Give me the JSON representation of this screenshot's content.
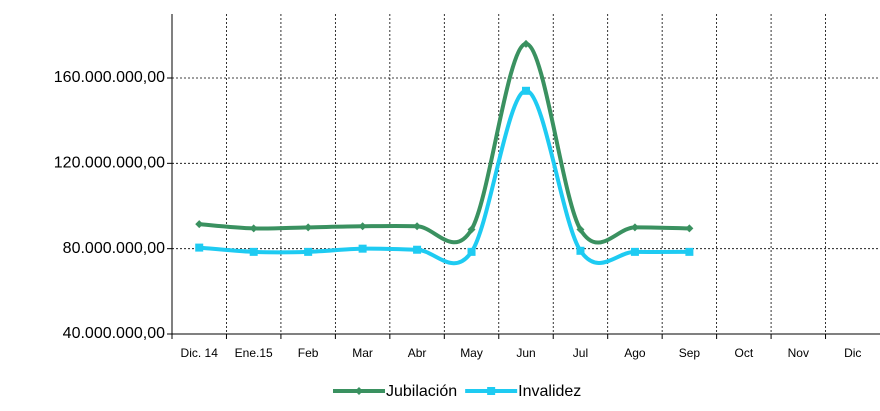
{
  "chart_data": {
    "type": "line",
    "categories": [
      "Dic. 14",
      "Ene.15",
      "Feb",
      "Mar",
      "Abr",
      "May",
      "Jun",
      "Jul",
      "Ago",
      "Sep",
      "Oct",
      "Nov",
      "Dic"
    ],
    "series": [
      {
        "name": "Jubilación",
        "color": "#3a9160",
        "marker": "diamond",
        "values": [
          91500000,
          89500000,
          90000000,
          90500000,
          90500000,
          89000000,
          176000000,
          89000000,
          90000000,
          89500000,
          null,
          null,
          null
        ]
      },
      {
        "name": "Invalidez",
        "color": "#1ecbf2",
        "marker": "square",
        "values": [
          80500000,
          78500000,
          78500000,
          80000000,
          79500000,
          78500000,
          154000000,
          79000000,
          78500000,
          78500000,
          null,
          null,
          null
        ]
      }
    ],
    "ylim": [
      40000000,
      190000000
    ],
    "yticks": [
      {
        "value": 40000000,
        "label": "40.000.000,00"
      },
      {
        "value": 80000000,
        "label": "80.000.000,00"
      },
      {
        "value": 120000000,
        "label": "120.000.000,00"
      },
      {
        "value": 160000000,
        "label": "160.000.000,00"
      }
    ],
    "grid": true,
    "smooth": true,
    "legend": "bottom"
  }
}
